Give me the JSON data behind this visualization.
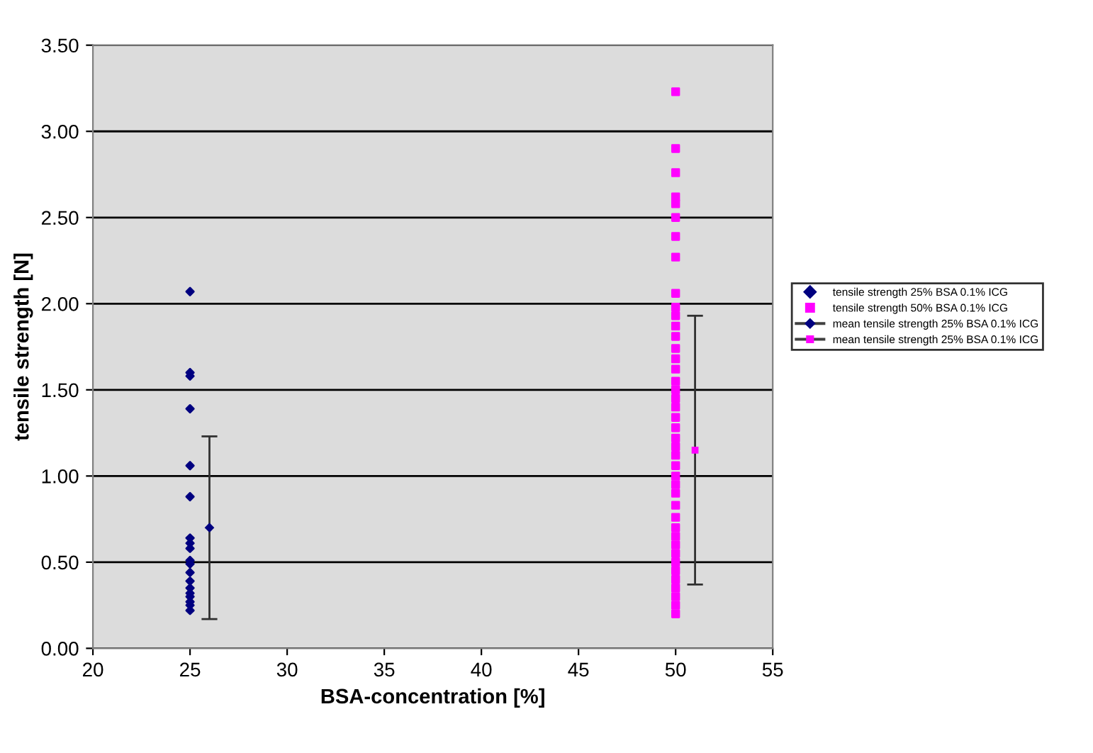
{
  "chart_data": {
    "type": "scatter",
    "xlabel": "BSA-concentration [%]",
    "ylabel": "tensile strength [N]",
    "xlim": [
      20,
      55
    ],
    "xticks": [
      20,
      25,
      30,
      35,
      40,
      45,
      50,
      55
    ],
    "ylim": [
      0,
      3.5
    ],
    "yticks": [
      {
        "value": 0,
        "label": "0.00"
      },
      {
        "value": 0.5,
        "label": "0.50"
      },
      {
        "value": 1,
        "label": "1.00"
      },
      {
        "value": 1.5,
        "label": "1.50"
      },
      {
        "value": 2,
        "label": "2.00"
      },
      {
        "value": 2.5,
        "label": "2.50"
      },
      {
        "value": 3,
        "label": "3.00"
      },
      {
        "value": 3.5,
        "label": "3.50"
      }
    ],
    "grid": "y",
    "legend": "right",
    "series": [
      {
        "name": "tensile strength 25% BSA 0.1% ICG",
        "marker": "diamond",
        "color": "#000080",
        "x": [
          25,
          25,
          25,
          25,
          25,
          25,
          25,
          25,
          25,
          25,
          25,
          25,
          25,
          25,
          25,
          25,
          25,
          25,
          25
        ],
        "values": [
          2.07,
          1.6,
          1.58,
          1.39,
          1.06,
          0.88,
          0.64,
          0.61,
          0.58,
          0.51,
          0.49,
          0.44,
          0.39,
          0.35,
          0.32,
          0.3,
          0.27,
          0.25,
          0.22
        ]
      },
      {
        "name": "tensile strength 50% BSA 0.1% ICG",
        "marker": "square",
        "color": "#ff00ff",
        "x": [
          50,
          50,
          50,
          50,
          50,
          50,
          50,
          50,
          50,
          50,
          50,
          50,
          50,
          50,
          50,
          50,
          50,
          50,
          50,
          50,
          50,
          50,
          50,
          50,
          50,
          50,
          50,
          50,
          50,
          50,
          50,
          50,
          50,
          50,
          50,
          50,
          50,
          50,
          50,
          50,
          50,
          50
        ],
        "values": [
          3.23,
          2.9,
          2.76,
          2.62,
          2.58,
          2.5,
          2.39,
          2.27,
          2.06,
          1.98,
          1.93,
          1.87,
          1.81,
          1.74,
          1.68,
          1.62,
          1.55,
          1.5,
          1.45,
          1.4,
          1.34,
          1.28,
          1.22,
          1.17,
          1.12,
          1.06,
          1.0,
          0.95,
          0.9,
          0.83,
          0.76,
          0.7,
          0.65,
          0.6,
          0.55,
          0.5,
          0.45,
          0.4,
          0.35,
          0.3,
          0.25,
          0.2
        ]
      },
      {
        "name": "mean tensile strength 25% BSA 0.1% ICG",
        "type": "line",
        "marker": "diamond",
        "line_style": "solid",
        "color": "#000080",
        "x": [
          26
        ],
        "values": [
          0.7
        ],
        "errors": [
          0.53
        ]
      },
      {
        "name": "mean tensile strength 25% BSA 0.1% ICG",
        "type": "line",
        "marker": "square",
        "line_style": "solid",
        "color": "#ff00ff",
        "x": [
          51
        ],
        "values": [
          1.15
        ],
        "errors": [
          0.78
        ]
      }
    ]
  }
}
